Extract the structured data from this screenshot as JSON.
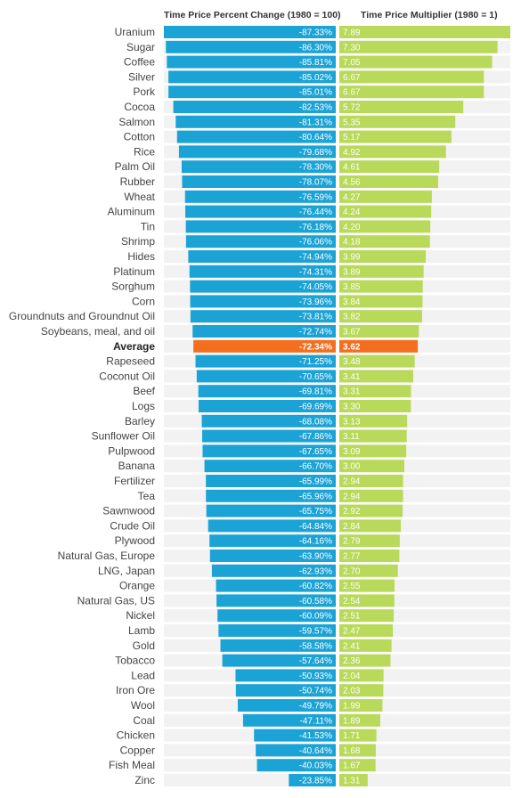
{
  "chart_data": {
    "type": "bar",
    "series": [
      {
        "name": "Time Price Percent Change (1980 = 100)",
        "color": "#1ba3d6",
        "values": [
          -87.33,
          -86.3,
          -85.81,
          -85.02,
          -85.01,
          -82.53,
          -81.31,
          -80.64,
          -79.68,
          -78.3,
          -78.07,
          -76.59,
          -76.44,
          -76.18,
          -76.06,
          -74.94,
          -74.31,
          -74.05,
          -73.96,
          -73.81,
          -72.74,
          -72.34,
          -71.25,
          -70.65,
          -69.81,
          -69.69,
          -68.08,
          -67.86,
          -67.65,
          -66.7,
          -65.99,
          -65.96,
          -65.75,
          -64.84,
          -64.16,
          -63.9,
          -62.93,
          -60.82,
          -60.58,
          -60.09,
          -59.57,
          -58.58,
          -57.64,
          -50.93,
          -50.74,
          -49.79,
          -47.11,
          -41.53,
          -40.64,
          -40.03,
          -23.85
        ],
        "labels": [
          "-87.33%",
          "-86.30%",
          "-85.81%",
          "-85.02%",
          "-85.01%",
          "-82.53%",
          "-81.31%",
          "-80.64%",
          "-79.68%",
          "-78.30%",
          "-78.07%",
          "-76.59%",
          "-76.44%",
          "-76.18%",
          "-76.06%",
          "-74.94%",
          "-74.31%",
          "-74.05%",
          "-73.96%",
          "-73.81%",
          "-72.74%",
          "-72.34%",
          "-71.25%",
          "-70.65%",
          "-69.81%",
          "-69.69%",
          "-68.08%",
          "-67.86%",
          "-67.65%",
          "-66.70%",
          "-65.99%",
          "-65.96%",
          "-65.75%",
          "-64.84%",
          "-64.16%",
          "-63.90%",
          "-62.93%",
          "-60.82%",
          "-60.58%",
          "-60.09%",
          "-59.57%",
          "-58.58%",
          "-57.64%",
          "-50.93%",
          "-50.74%",
          "-49.79%",
          "-47.11%",
          "-41.53%",
          "-40.64%",
          "-40.03%",
          "-23.85%"
        ]
      },
      {
        "name": "Time Price Multiplier (1980 = 1)",
        "color": "#b8d95a",
        "values": [
          7.89,
          7.3,
          7.05,
          6.67,
          6.67,
          5.72,
          5.35,
          5.17,
          4.92,
          4.61,
          4.56,
          4.27,
          4.24,
          4.2,
          4.18,
          3.99,
          3.89,
          3.85,
          3.84,
          3.82,
          3.67,
          3.62,
          3.48,
          3.41,
          3.31,
          3.3,
          3.13,
          3.11,
          3.09,
          3.0,
          2.94,
          2.94,
          2.92,
          2.84,
          2.79,
          2.77,
          2.7,
          2.55,
          2.54,
          2.51,
          2.47,
          2.41,
          2.36,
          2.04,
          2.03,
          1.99,
          1.89,
          1.71,
          1.68,
          1.67,
          1.31
        ],
        "labels": [
          "7.89",
          "7.30",
          "7.05",
          "6.67",
          "6.67",
          "5.72",
          "5.35",
          "5.17",
          "4.92",
          "4.61",
          "4.56",
          "4.27",
          "4.24",
          "4.20",
          "4.18",
          "3.99",
          "3.89",
          "3.85",
          "3.84",
          "3.82",
          "3.67",
          "3.62",
          "3.48",
          "3.41",
          "3.31",
          "3.30",
          "3.13",
          "3.11",
          "3.09",
          "3.00",
          "2.94",
          "2.94",
          "2.92",
          "2.84",
          "2.79",
          "2.77",
          "2.70",
          "2.55",
          "2.54",
          "2.51",
          "2.47",
          "2.41",
          "2.36",
          "2.04",
          "2.03",
          "1.99",
          "1.89",
          "1.71",
          "1.68",
          "1.67",
          "1.31"
        ]
      }
    ],
    "categories": [
      "Uranium",
      "Sugar",
      "Coffee",
      "Silver",
      "Pork",
      "Cocoa",
      "Salmon",
      "Cotton",
      "Rice",
      "Palm Oil",
      "Rubber",
      "Wheat",
      "Aluminum",
      "Tin",
      "Shrimp",
      "Hides",
      "Platinum",
      "Sorghum",
      "Corn",
      "Groundnuts and Groundnut Oil",
      "Soybeans, meal, and oil",
      "Average",
      "Rapeseed",
      "Coconut Oil",
      "Beef",
      "Logs",
      "Barley",
      "Sunflower Oil",
      "Pulpwood",
      "Banana",
      "Fertilizer",
      "Tea",
      "Sawnwood",
      "Crude Oil",
      "Plywood",
      "Natural Gas, Europe",
      "LNG, Japan",
      "Orange",
      "Natural Gas, US",
      "Nickel",
      "Lamb",
      "Gold",
      "Tobacco",
      "Lead",
      "Iron Ore",
      "Wool",
      "Coal",
      "Chicken",
      "Copper",
      "Fish Meal",
      "Zinc"
    ],
    "highlight_category": "Average",
    "highlight_color": "#f36f1e",
    "row_background": "#f2f2f2",
    "legend": "none",
    "grid": false
  }
}
